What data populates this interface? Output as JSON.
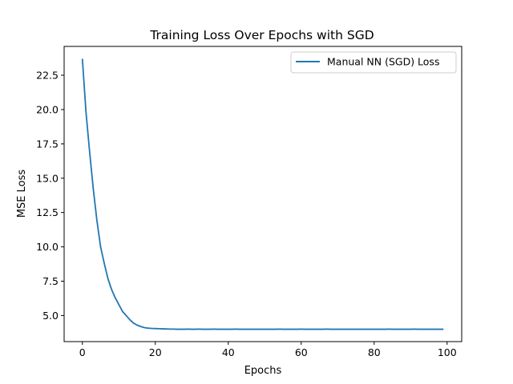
{
  "chart_data": {
    "type": "line",
    "title": "Training Loss Over Epochs with SGD",
    "xlabel": "Epochs",
    "ylabel": "MSE Loss",
    "xlim": [
      -5,
      104
    ],
    "ylim": [
      3.1,
      24.6
    ],
    "xticks": [
      0,
      20,
      40,
      60,
      80,
      100
    ],
    "yticks": [
      5.0,
      7.5,
      10.0,
      12.5,
      15.0,
      17.5,
      20.0,
      22.5
    ],
    "xtick_labels": [
      "0",
      "20",
      "40",
      "60",
      "80",
      "100"
    ],
    "ytick_labels": [
      "5.0",
      "7.5",
      "10.0",
      "12.5",
      "15.0",
      "17.5",
      "20.0",
      "22.5"
    ],
    "grid": false,
    "legend_position": "top-right",
    "series": [
      {
        "name": "Manual NN (SGD) Loss",
        "color": "#1f77b4",
        "x": [
          0,
          1,
          2,
          3,
          4,
          5,
          6,
          7,
          8,
          9,
          10,
          11,
          12,
          13,
          14,
          15,
          16,
          17,
          18,
          19,
          20,
          21,
          22,
          23,
          24,
          25,
          26,
          27,
          28,
          29,
          30,
          31,
          32,
          33,
          34,
          35,
          36,
          37,
          38,
          39,
          40,
          41,
          42,
          43,
          44,
          45,
          46,
          47,
          48,
          49,
          50,
          51,
          52,
          53,
          54,
          55,
          56,
          57,
          58,
          59,
          60,
          61,
          62,
          63,
          64,
          65,
          66,
          67,
          68,
          69,
          70,
          71,
          72,
          73,
          74,
          75,
          76,
          77,
          78,
          79,
          80,
          81,
          82,
          83,
          84,
          85,
          86,
          87,
          88,
          89,
          90,
          91,
          92,
          93,
          94,
          95,
          96,
          97,
          98,
          99
        ],
        "values": [
          23.7,
          19.8,
          16.9,
          14.2,
          11.9,
          10.0,
          8.8,
          7.7,
          6.9,
          6.3,
          5.8,
          5.3,
          5.0,
          4.7,
          4.45,
          4.3,
          4.2,
          4.12,
          4.08,
          4.06,
          4.05,
          4.04,
          4.03,
          4.02,
          4.01,
          4.01,
          4.0,
          4.0,
          4.0,
          4.01,
          4.0,
          4.0,
          4.01,
          4.0,
          4.0,
          4.0,
          4.01,
          4.0,
          4.0,
          4.0,
          4.0,
          4.0,
          4.01,
          4.0,
          4.0,
          4.0,
          4.0,
          4.0,
          4.0,
          4.0,
          4.0,
          4.0,
          4.0,
          4.0,
          4.01,
          4.0,
          4.0,
          4.0,
          4.0,
          4.0,
          4.01,
          4.0,
          4.0,
          4.0,
          4.0,
          4.0,
          4.0,
          4.01,
          4.0,
          4.0,
          4.0,
          4.0,
          4.0,
          4.0,
          4.0,
          4.0,
          4.0,
          4.0,
          4.0,
          4.0,
          4.0,
          4.0,
          4.0,
          4.0,
          4.01,
          4.0,
          4.0,
          4.0,
          4.0,
          4.0,
          4.0,
          4.01,
          4.0,
          4.0,
          4.0,
          4.0,
          4.0,
          4.0,
          4.0,
          4.0
        ]
      }
    ]
  }
}
